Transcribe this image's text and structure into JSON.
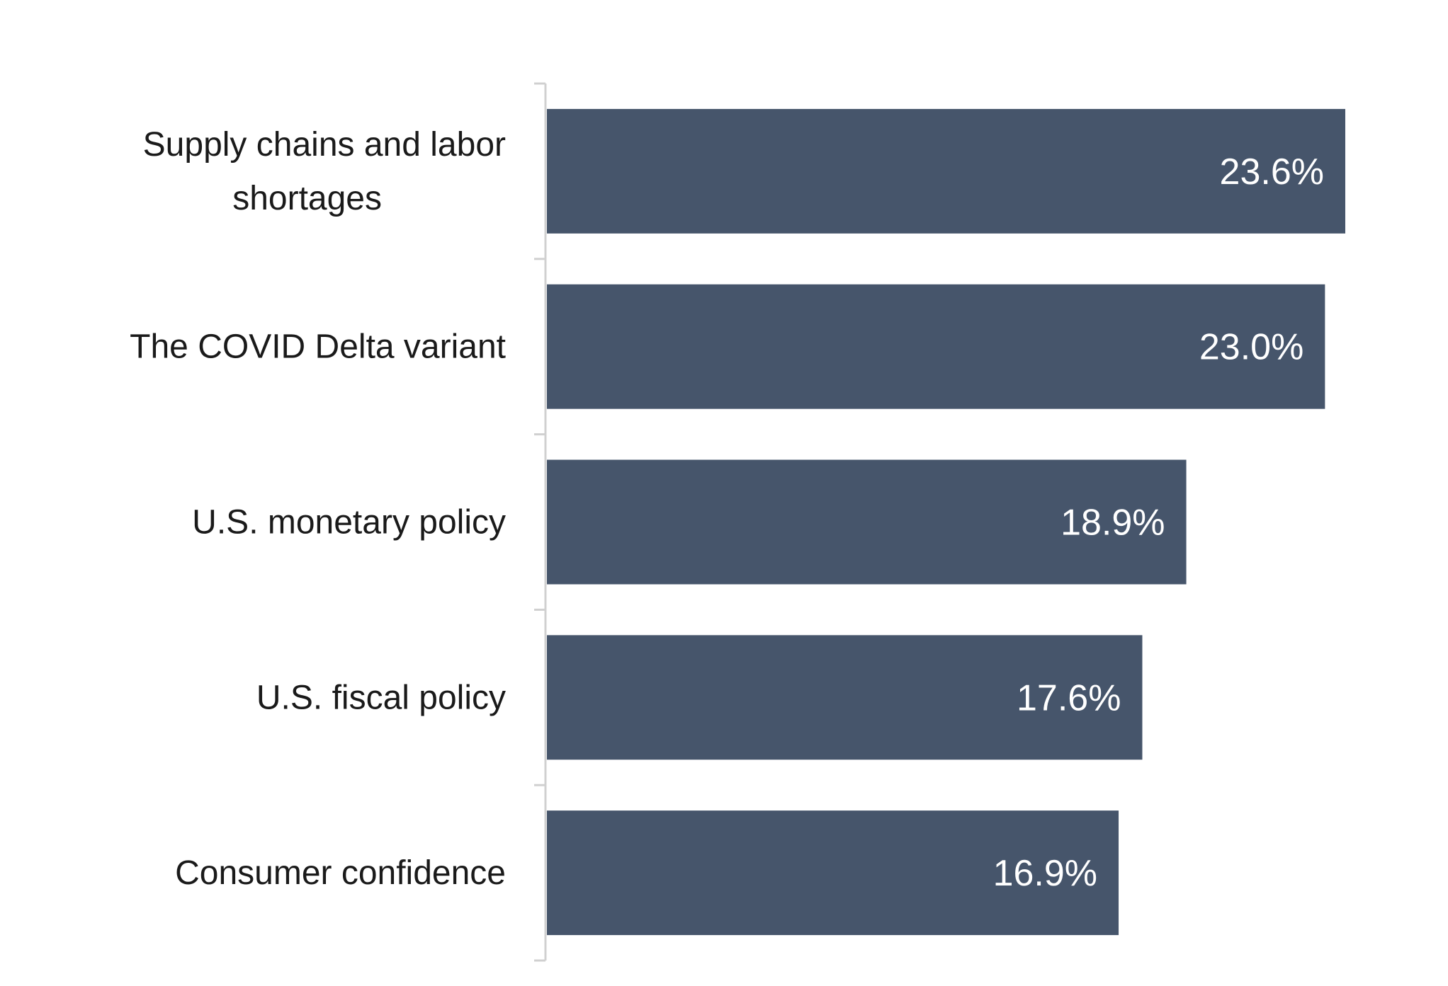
{
  "chart_data": {
    "type": "bar",
    "orientation": "horizontal",
    "title": "",
    "xlabel": "",
    "ylabel": "",
    "categories": [
      [
        "Supply chains and labor",
        "shortages"
      ],
      [
        "The COVID Delta variant"
      ],
      [
        "U.S. monetary policy"
      ],
      [
        "U.S. fiscal policy"
      ],
      [
        "Consumer confidence"
      ]
    ],
    "values": [
      23.6,
      23.0,
      18.9,
      17.6,
      16.9
    ],
    "value_labels": [
      "23.6%",
      "23.0%",
      "18.9%",
      "17.6%",
      "16.9%"
    ],
    "xlim": [
      0,
      25
    ],
    "bar_color": "#46556b",
    "value_label_color": "#ffffff",
    "axis_color": "#d0d0d0",
    "grid": false,
    "legend": "none"
  }
}
